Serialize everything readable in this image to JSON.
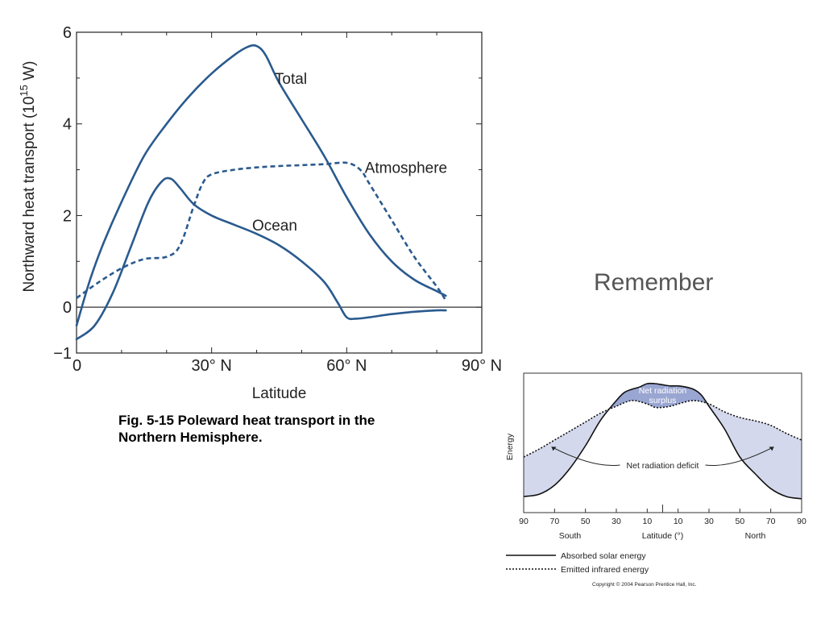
{
  "caption": {
    "line1": "Fig. 5-15  Poleward heat transport in the",
    "line2": "Northern Hemisphere."
  },
  "side_heading": "Remember",
  "chart_data": [
    {
      "type": "line",
      "title": "",
      "xlabel": "Latitude",
      "ylabel": "Northward heat transport (10",
      "ylabel_superscript": "15",
      "ylabel_suffix": " W)",
      "xlim": [
        0,
        90
      ],
      "ylim": [
        -1,
        6
      ],
      "x_ticks": [
        0,
        30,
        60,
        90
      ],
      "x_tick_labels": [
        "0",
        "30° N",
        "60° N",
        "90° N"
      ],
      "y_ticks": [
        -1,
        0,
        2,
        4,
        6
      ],
      "y_tick_labels": [
        "−1",
        "0",
        "2",
        "4",
        "6"
      ],
      "grid": false,
      "zero_line": true,
      "series": [
        {
          "name": "Total",
          "style": "solid",
          "color": "#2a5a8e",
          "x": [
            0,
            3,
            6,
            10,
            15,
            20,
            25,
            30,
            35,
            38,
            40,
            42,
            45,
            50,
            55,
            60,
            65,
            70,
            75,
            80,
            82
          ],
          "y": [
            -0.4,
            0.6,
            1.4,
            2.3,
            3.3,
            4.0,
            4.6,
            5.1,
            5.5,
            5.68,
            5.7,
            5.5,
            4.9,
            4.1,
            3.3,
            2.4,
            1.6,
            1.0,
            0.6,
            0.35,
            0.25
          ]
        },
        {
          "name": "Atmosphere",
          "style": "dashed",
          "color": "#2a5a8e",
          "x": [
            0,
            5,
            10,
            15,
            20,
            23,
            26,
            28,
            30,
            35,
            40,
            45,
            50,
            55,
            60,
            63,
            65,
            70,
            75,
            80,
            82
          ],
          "y": [
            0.2,
            0.55,
            0.85,
            1.05,
            1.1,
            1.35,
            2.2,
            2.7,
            2.9,
            3.0,
            3.05,
            3.08,
            3.1,
            3.12,
            3.15,
            3.0,
            2.7,
            1.9,
            1.1,
            0.45,
            0.15
          ]
        },
        {
          "name": "Ocean",
          "style": "solid",
          "color": "#2a5a8e",
          "x": [
            0,
            4,
            8,
            12,
            16,
            19,
            21,
            23,
            26,
            30,
            35,
            40,
            45,
            50,
            55,
            58,
            60,
            62,
            65,
            70,
            75,
            80,
            82
          ],
          "y": [
            -0.7,
            -0.4,
            0.3,
            1.3,
            2.3,
            2.75,
            2.8,
            2.6,
            2.25,
            2.0,
            1.8,
            1.6,
            1.35,
            1.0,
            0.55,
            0.1,
            -0.22,
            -0.25,
            -0.22,
            -0.15,
            -0.1,
            -0.07,
            -0.07
          ]
        }
      ]
    },
    {
      "type": "area",
      "title": "",
      "xlabel": "Latitude (°)",
      "ylabel": "Energy",
      "x_ticks": [
        -90,
        -70,
        -50,
        -30,
        -10,
        10,
        30,
        50,
        70,
        90
      ],
      "x_tick_labels": [
        "90",
        "70",
        "50",
        "30",
        "10",
        "10",
        "30",
        "50",
        "70",
        "90"
      ],
      "x_region_labels": [
        "South",
        "North"
      ],
      "annotations": [
        "Net radiation surplus",
        "Net radiation deficit"
      ],
      "legend": [
        "Absorbed solar energy",
        "Emitted infrared energy"
      ],
      "legend_position": "bottom",
      "copyright": "Copyright © 2004 Pearson Prentice Hall, Inc.",
      "fill_color": "#d4d8ec",
      "surplus_color": "#9aa6d2",
      "series": [
        {
          "name": "Absorbed solar energy",
          "style": "solid",
          "x": [
            -90,
            -80,
            -70,
            -60,
            -50,
            -40,
            -30,
            -25,
            -20,
            -15,
            -10,
            -5,
            0,
            5,
            10,
            15,
            20,
            25,
            30,
            40,
            50,
            60,
            70,
            80,
            90
          ],
          "y": [
            0.1,
            0.12,
            0.2,
            0.35,
            0.55,
            0.78,
            0.95,
            1.02,
            1.05,
            1.07,
            1.1,
            1.1,
            1.09,
            1.08,
            1.08,
            1.07,
            1.05,
            1.0,
            0.9,
            0.7,
            0.45,
            0.3,
            0.17,
            0.1,
            0.08
          ]
        },
        {
          "name": "Emitted infrared energy",
          "style": "dotted",
          "x": [
            -90,
            -80,
            -70,
            -60,
            -50,
            -40,
            -30,
            -20,
            -10,
            -5,
            0,
            5,
            10,
            20,
            30,
            40,
            50,
            60,
            70,
            80,
            90
          ],
          "y": [
            0.45,
            0.52,
            0.6,
            0.68,
            0.76,
            0.84,
            0.9,
            0.95,
            0.92,
            0.89,
            0.89,
            0.9,
            0.92,
            0.95,
            0.92,
            0.85,
            0.8,
            0.77,
            0.73,
            0.66,
            0.6
          ]
        }
      ]
    }
  ]
}
